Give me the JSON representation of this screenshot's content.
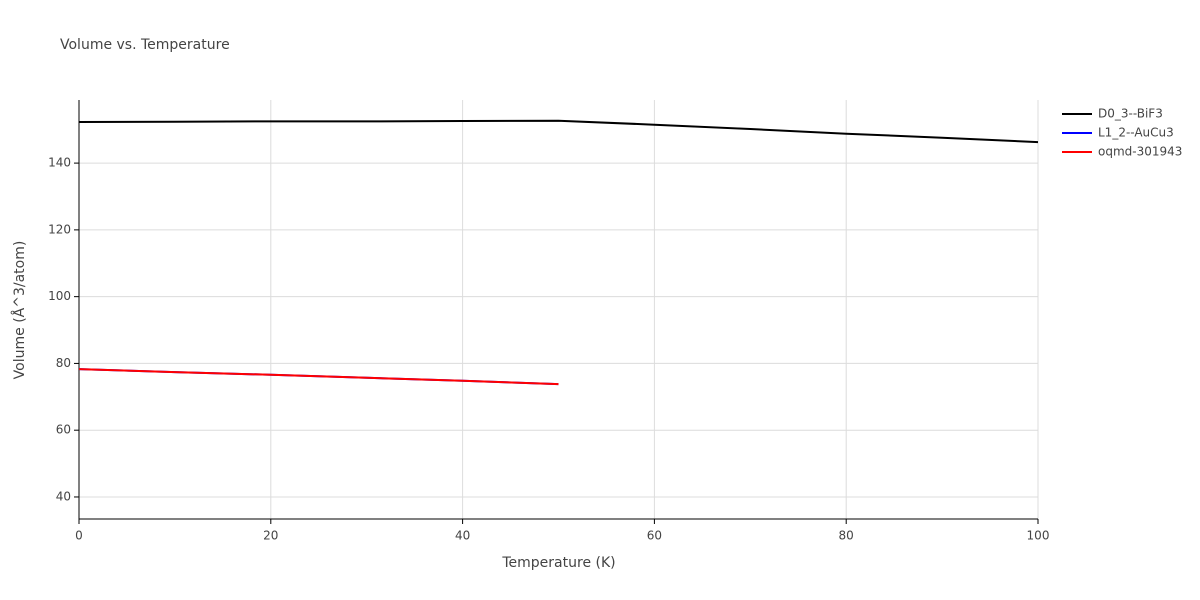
{
  "chart_data": {
    "type": "line",
    "title": "Volume vs. Temperature",
    "x_label": "Temperature (K)",
    "y_label": "Volume (Å^3/atom)",
    "series": [
      {
        "name": "D0_3--BiF3",
        "color": "#000000",
        "x": [
          0,
          10,
          20,
          30,
          40,
          50,
          60,
          70,
          80,
          90,
          100
        ],
        "values": [
          152.3,
          152.4,
          152.5,
          152.5,
          152.6,
          152.7,
          151.5,
          150.2,
          148.8,
          147.6,
          146.3
        ]
      },
      {
        "name": "L1_2--AuCu3",
        "color": "#0000ff",
        "x": [
          0,
          10,
          20,
          30,
          40,
          50
        ],
        "values": [
          78.3,
          77.4,
          76.6,
          75.7,
          74.8,
          73.8
        ]
      },
      {
        "name": "oqmd-301943",
        "color": "#ff0000",
        "x": [
          0,
          10,
          20,
          30,
          40,
          50
        ],
        "values": [
          78.3,
          77.4,
          76.6,
          75.7,
          74.8,
          73.8
        ]
      }
    ],
    "xlim": [
      0,
      100
    ],
    "xticks": [
      0,
      20,
      40,
      60,
      80,
      100
    ],
    "ylim": [
      33.4,
      158.9
    ],
    "yticks": [
      40,
      60,
      80,
      100,
      120,
      140
    ],
    "grid": true,
    "legend": "right"
  }
}
